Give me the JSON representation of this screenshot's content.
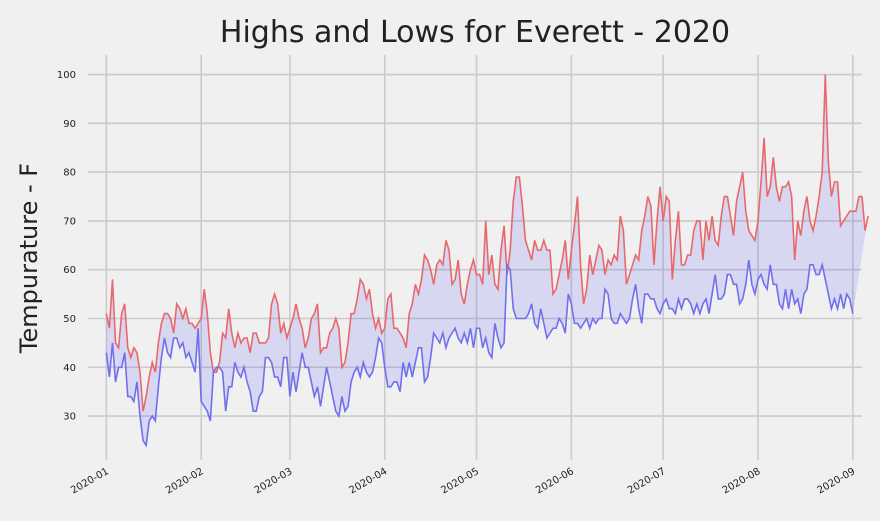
{
  "chart_data": {
    "type": "line",
    "title": "Highs and Lows for Everett - 2020",
    "xlabel": "",
    "ylabel": "Tempurature - F",
    "x_start": "2020-01-01",
    "x_ticks": [
      "2020-01",
      "2020-02",
      "2020-03",
      "2020-04",
      "2020-05",
      "2020-06",
      "2020-07",
      "2020-08",
      "2020-09"
    ],
    "y_ticks": [
      30,
      40,
      50,
      60,
      70,
      80,
      90,
      100
    ],
    "ylim": [
      21,
      104
    ],
    "xlim": [
      "2019-12-26",
      "2020-09-04"
    ],
    "grid": true,
    "fill_between": {
      "color": "#0000ff",
      "alpha": 0.1
    },
    "series": [
      {
        "name": "highs",
        "color": "#e8686b",
        "values": [
          51,
          48,
          58,
          45,
          44,
          51,
          53,
          44,
          42,
          44,
          43,
          39,
          31,
          34,
          38,
          41,
          39,
          45,
          49,
          51,
          51,
          50,
          47,
          53,
          52,
          50,
          52,
          49,
          49,
          48,
          49,
          50,
          56,
          51,
          43,
          39,
          39,
          41,
          47,
          46,
          52,
          47,
          44,
          47,
          45,
          46,
          46,
          43,
          47,
          47,
          45,
          45,
          45,
          46,
          53,
          55,
          53,
          47,
          49,
          46,
          48,
          50,
          53,
          50,
          48,
          44,
          46,
          50,
          51,
          53,
          43,
          44,
          44,
          47,
          48,
          50,
          48,
          40,
          41,
          45,
          51,
          51,
          54,
          58,
          57,
          54,
          56,
          51,
          48,
          50,
          47,
          48,
          54,
          55,
          48,
          48,
          47,
          46,
          44,
          51,
          53,
          57,
          55,
          58,
          63,
          62,
          60,
          57,
          61,
          62,
          61,
          66,
          64,
          57,
          58,
          62,
          55,
          53,
          57,
          60,
          62,
          59,
          59,
          57,
          70,
          59,
          63,
          57,
          56,
          64,
          69,
          59,
          64,
          74,
          79,
          79,
          73,
          66,
          64,
          62,
          66,
          64,
          64,
          66,
          64,
          64,
          55,
          56,
          59,
          62,
          66,
          58,
          64,
          69,
          75,
          61,
          53,
          56,
          63,
          59,
          62,
          65,
          64,
          59,
          62,
          61,
          63,
          62,
          71,
          68,
          57,
          59,
          61,
          63,
          62,
          68,
          71,
          75,
          73,
          61,
          70,
          77,
          70,
          75,
          74,
          58,
          66,
          72,
          61,
          61,
          63,
          63,
          68,
          70,
          70,
          62,
          70,
          66,
          71,
          66,
          65,
          71,
          75,
          75,
          71,
          67,
          74,
          77,
          80,
          72,
          68,
          67,
          66,
          70,
          78,
          87,
          75,
          77,
          83,
          77,
          74,
          77,
          77,
          78,
          75,
          62,
          70,
          67,
          72,
          75,
          70,
          68,
          71,
          75,
          80,
          100,
          82,
          75,
          78,
          78,
          69,
          70,
          71,
          72,
          72,
          72,
          75,
          75,
          68,
          71
        ]
      },
      {
        "name": "lows",
        "color": "#7070ee",
        "values": [
          43,
          38,
          45,
          37,
          40,
          40,
          43,
          34,
          34,
          33,
          37,
          30,
          25,
          24,
          29,
          30,
          29,
          36,
          42,
          46,
          43,
          42,
          46,
          46,
          44,
          45,
          42,
          43,
          41,
          39,
          48,
          33,
          32,
          31,
          29,
          39,
          40,
          40,
          39,
          31,
          36,
          36,
          41,
          39,
          38,
          40,
          37,
          35,
          31,
          31,
          34,
          35,
          42,
          42,
          41,
          38,
          38,
          36,
          42,
          42,
          34,
          39,
          35,
          39,
          43,
          40,
          40,
          37,
          34,
          36,
          32,
          36,
          40,
          37,
          34,
          31,
          30,
          34,
          31,
          32,
          37,
          39,
          40,
          38,
          41,
          39,
          38,
          39,
          42,
          46,
          45,
          40,
          36,
          36,
          37,
          37,
          35,
          41,
          38,
          41,
          38,
          41,
          44,
          44,
          37,
          38,
          42,
          47,
          46,
          45,
          47,
          44,
          46,
          47,
          48,
          46,
          45,
          47,
          45,
          48,
          44,
          48,
          48,
          44,
          46,
          43,
          42,
          49,
          46,
          44,
          45,
          61,
          60,
          52,
          50,
          50,
          50,
          50,
          51,
          53,
          49,
          48,
          52,
          49,
          46,
          47,
          48,
          48,
          50,
          49,
          47,
          55,
          53,
          49,
          49,
          48,
          49,
          50,
          48,
          50,
          49,
          50,
          50,
          56,
          55,
          50,
          49,
          49,
          51,
          50,
          49,
          50,
          54,
          57,
          52,
          49,
          55,
          55,
          54,
          54,
          52,
          51,
          53,
          54,
          52,
          52,
          51,
          54,
          52,
          54,
          54,
          53,
          51,
          53,
          51,
          53,
          54,
          51,
          55,
          59,
          54,
          54,
          55,
          59,
          59,
          57,
          57,
          53,
          54,
          57,
          62,
          57,
          55,
          58,
          59,
          57,
          56,
          61,
          57,
          57,
          53,
          52,
          56,
          52,
          56,
          53,
          54,
          51,
          55,
          56,
          61,
          61,
          59,
          59,
          61,
          58,
          55,
          52,
          54,
          52,
          55,
          52,
          55,
          54,
          51
        ]
      }
    ]
  }
}
